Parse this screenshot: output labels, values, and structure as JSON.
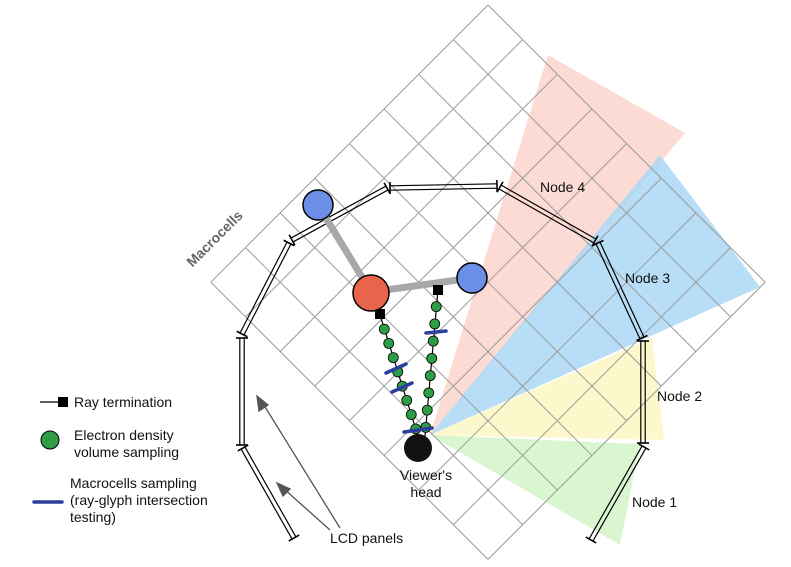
{
  "labels": {
    "macrocells": "Macrocells",
    "viewer_head_line1": "Viewer's",
    "viewer_head_line2": "head",
    "lcd_panels": "LCD panels"
  },
  "nodes": [
    {
      "label": "Node 4",
      "color": "#fcd5cc"
    },
    {
      "label": "Node 3",
      "color": "#aad8f5"
    },
    {
      "label": "Node 2",
      "color": "#fbf7c2"
    },
    {
      "label": "Node 1",
      "color": "#d4f5c8"
    }
  ],
  "legend": {
    "ray_termination": "Ray termination",
    "electron_line1": "Electron density",
    "electron_line2": "volume sampling",
    "macro_line1": "Macrocells sampling",
    "macro_line2": "(ray-glyph intersection",
    "macro_line3": "testing)"
  },
  "colors": {
    "glyph_red": "#e8644a",
    "glyph_blue": "#6b8fe6",
    "sample_green": "#2e9e46",
    "macro_mark": "#2a3f9e",
    "head": "#111111",
    "grid": "#9a9a9a",
    "bond": "#a8a8a8"
  }
}
